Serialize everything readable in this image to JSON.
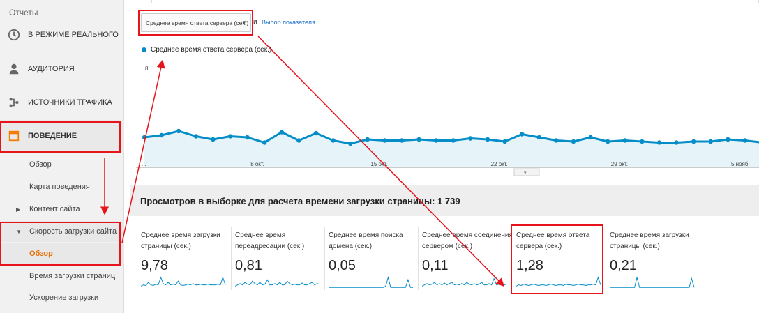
{
  "sidebar": {
    "reports_label": "Отчеты",
    "items": [
      {
        "label": "В РЕЖИМЕ РЕАЛЬНОГО",
        "icon": "clock-icon"
      },
      {
        "label": "АУДИТОРИЯ",
        "icon": "person-icon"
      },
      {
        "label": "ИСТОЧНИКИ ТРАФИКА",
        "icon": "acquisition-icon"
      },
      {
        "label": "ПОВЕДЕНИЕ",
        "icon": "behavior-icon"
      }
    ],
    "behavior_sub": [
      {
        "label": "Обзор"
      },
      {
        "label": "Карта поведения"
      },
      {
        "label": "Контент сайта"
      },
      {
        "label": "Скорость загрузки сайта"
      },
      {
        "label": "Обзор"
      },
      {
        "label": "Время загрузки страниц"
      },
      {
        "label": "Ускорение загрузки"
      }
    ]
  },
  "toolbar": {
    "metric_selected": "Среднее время ответа сервера (сек.)",
    "and_text": "и",
    "choose_metric": "Выбор показателя"
  },
  "legend": {
    "series_label": "Среднее время ответа сервера (сек.)"
  },
  "section_title": "Просмотров в выборке для расчета времени загрузки страницы: 1 739",
  "cards": [
    {
      "title_1": "Среднее время загрузки",
      "title_2": "страницы (сек.)",
      "value": "9,78"
    },
    {
      "title_1": "Среднее время",
      "title_2": "переадресации (сек.)",
      "value": "0,81"
    },
    {
      "title_1": "Среднее время поиска",
      "title_2": "домена (сек.)",
      "value": "0,05"
    },
    {
      "title_1": "Среднее время соединения с",
      "title_2": "сервером (сек.)",
      "value": "0,11"
    },
    {
      "title_1": "Среднее время ответа",
      "title_2": "сервера (сек.)",
      "value": "1,28"
    },
    {
      "title_1": "Среднее время загрузки",
      "title_2": "страницы (сек.)",
      "value": "0,21"
    }
  ],
  "colors": {
    "series": "#058dc7",
    "area": "#e6f4fa",
    "highlight": "#e8141b",
    "active": "#e8710a"
  },
  "chart_data": {
    "type": "area",
    "title": "",
    "ylabel": "",
    "y_ticks": [
      "8"
    ],
    "x_tick_labels": [
      "...",
      "8 окт.",
      "15 окт.",
      "22 окт.",
      "29 окт.",
      "5 нояб."
    ],
    "x_tick_index": [
      0,
      7,
      14,
      21,
      28,
      35
    ],
    "ylim": [
      0,
      8
    ],
    "series": [
      {
        "name": "Среднее время ответа сервера (сек.)",
        "values": [
          1.4,
          1.6,
          2.0,
          1.5,
          1.2,
          1.5,
          1.4,
          0.9,
          1.9,
          1.1,
          1.8,
          1.1,
          0.8,
          1.2,
          1.1,
          1.1,
          1.2,
          1.1,
          1.1,
          1.3,
          1.2,
          1.0,
          1.7,
          1.4,
          1.1,
          1.0,
          1.4,
          1.0,
          1.1,
          1.0,
          0.9,
          0.9,
          1.0,
          1.0,
          1.2,
          1.1,
          0.9
        ]
      }
    ]
  },
  "sparklines": [
    [
      0.2,
      0.3,
      0.25,
      0.5,
      0.3,
      0.25,
      0.35,
      0.3,
      0.9,
      0.4,
      0.3,
      0.5,
      0.3,
      0.35,
      0.3,
      0.6,
      0.3,
      0.25,
      0.3,
      0.35,
      0.3,
      0.4,
      0.3,
      0.3,
      0.35,
      0.3,
      0.3,
      0.35,
      0.3,
      0.3,
      0.3,
      0.35,
      0.3,
      0.9,
      0.3
    ],
    [
      0.2,
      0.3,
      0.4,
      0.3,
      0.5,
      0.35,
      0.3,
      0.6,
      0.4,
      0.3,
      0.5,
      0.3,
      0.35,
      0.7,
      0.3,
      0.3,
      0.4,
      0.3,
      0.5,
      0.3,
      0.3,
      0.6,
      0.4,
      0.3,
      0.35,
      0.3,
      0.3,
      0.45,
      0.3,
      0.3,
      0.4,
      0.5,
      0.3,
      0.4,
      0.35
    ],
    [
      0.1,
      0.1,
      0.1,
      0.1,
      0.1,
      0.1,
      0.1,
      0.1,
      0.1,
      0.1,
      0.1,
      0.1,
      0.1,
      0.1,
      0.1,
      0.1,
      0.1,
      0.1,
      0.1,
      0.1,
      0.1,
      0.1,
      0.1,
      0.2,
      0.9,
      0.1,
      0.1,
      0.1,
      0.1,
      0.1,
      0.1,
      0.1,
      0.7,
      0.1,
      0.1
    ],
    [
      0.2,
      0.3,
      0.4,
      0.3,
      0.35,
      0.5,
      0.3,
      0.4,
      0.3,
      0.45,
      0.3,
      0.4,
      0.5,
      0.3,
      0.35,
      0.3,
      0.4,
      0.3,
      0.5,
      0.35,
      0.3,
      0.4,
      0.3,
      0.35,
      0.5,
      0.3,
      0.3,
      0.4,
      0.3,
      0.8,
      0.3,
      0.35,
      0.3,
      0.3,
      0.35
    ],
    [
      0.2,
      0.3,
      0.25,
      0.35,
      0.3,
      0.25,
      0.3,
      0.35,
      0.3,
      0.25,
      0.3,
      0.3,
      0.25,
      0.3,
      0.35,
      0.3,
      0.25,
      0.3,
      0.3,
      0.25,
      0.35,
      0.3,
      0.3,
      0.25,
      0.3,
      0.35,
      0.3,
      0.3,
      0.25,
      0.3,
      0.3,
      0.35,
      0.3,
      0.9,
      0.3
    ],
    [
      0.1,
      0.1,
      0.1,
      0.1,
      0.1,
      0.1,
      0.1,
      0.1,
      0.1,
      0.1,
      0.1,
      0.9,
      0.1,
      0.1,
      0.1,
      0.1,
      0.1,
      0.1,
      0.1,
      0.1,
      0.1,
      0.1,
      0.1,
      0.1,
      0.1,
      0.1,
      0.1,
      0.1,
      0.1,
      0.1,
      0.1,
      0.1,
      0.1,
      0.8,
      0.1
    ]
  ]
}
